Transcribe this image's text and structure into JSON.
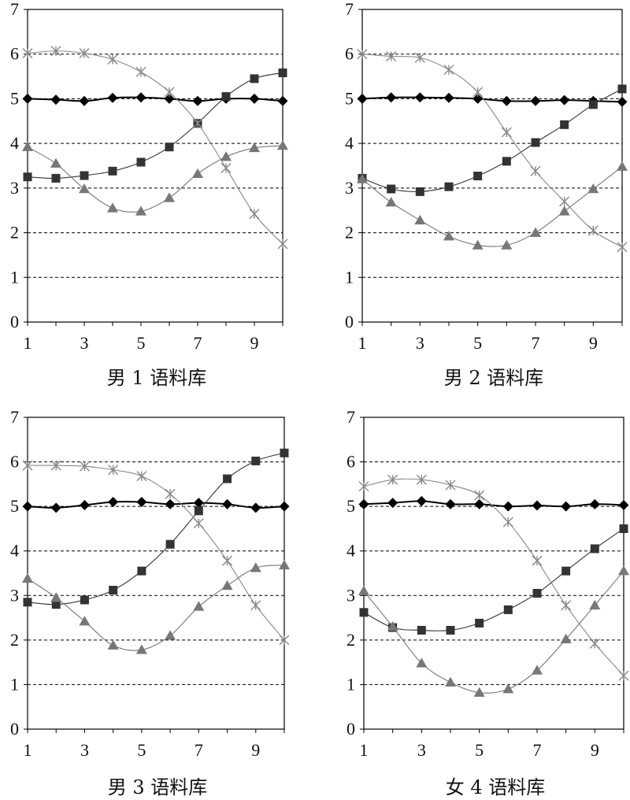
{
  "chart_data": [
    {
      "type": "line",
      "title": "男 1 语料库",
      "x": [
        1,
        2,
        3,
        4,
        5,
        6,
        7,
        8,
        9,
        10
      ],
      "x_tick_labels": [
        "1",
        "3",
        "5",
        "7",
        "9"
      ],
      "y_tick_labels": [
        "0",
        "1",
        "2",
        "3",
        "4",
        "5",
        "6",
        "7"
      ],
      "ylim": [
        0,
        7
      ],
      "xlim": [
        1,
        10
      ],
      "grid": "horizontal-dashed",
      "series": [
        {
          "marker": "diamond",
          "color": "#000000",
          "values": [
            5.0,
            4.98,
            4.95,
            5.02,
            5.03,
            5.0,
            4.95,
            5.0,
            5.0,
            4.95
          ]
        },
        {
          "marker": "square",
          "color": "#333333",
          "values": [
            3.25,
            3.22,
            3.28,
            3.38,
            3.58,
            3.92,
            4.45,
            5.05,
            5.45,
            5.58
          ]
        },
        {
          "marker": "triangle",
          "color": "#777777",
          "values": [
            3.92,
            3.55,
            2.98,
            2.55,
            2.48,
            2.78,
            3.32,
            3.7,
            3.9,
            3.95
          ]
        },
        {
          "marker": "star",
          "color": "#888888",
          "values": [
            6.02,
            6.07,
            6.02,
            5.88,
            5.6,
            5.15,
            4.45,
            3.45,
            2.42,
            1.75
          ]
        }
      ]
    },
    {
      "type": "line",
      "title": "男 2 语料库",
      "x": [
        1,
        2,
        3,
        4,
        5,
        6,
        7,
        8,
        9,
        10
      ],
      "x_tick_labels": [
        "1",
        "3",
        "5",
        "7",
        "9"
      ],
      "y_tick_labels": [
        "0",
        "1",
        "2",
        "3",
        "4",
        "5",
        "6",
        "7"
      ],
      "ylim": [
        0,
        7
      ],
      "xlim": [
        1,
        10
      ],
      "grid": "horizontal-dashed",
      "series": [
        {
          "marker": "diamond",
          "color": "#000000",
          "values": [
            5.0,
            5.03,
            5.03,
            5.02,
            5.0,
            4.95,
            4.95,
            4.97,
            4.95,
            4.93
          ]
        },
        {
          "marker": "square",
          "color": "#333333",
          "values": [
            3.22,
            2.98,
            2.92,
            3.03,
            3.27,
            3.6,
            4.02,
            4.42,
            4.87,
            5.22
          ]
        },
        {
          "marker": "triangle",
          "color": "#777777",
          "values": [
            3.2,
            2.68,
            2.28,
            1.92,
            1.72,
            1.72,
            2.0,
            2.48,
            2.98,
            3.48
          ]
        },
        {
          "marker": "star",
          "color": "#888888",
          "values": [
            6.0,
            5.95,
            5.92,
            5.65,
            5.15,
            4.25,
            3.38,
            2.7,
            2.05,
            1.68
          ]
        }
      ]
    },
    {
      "type": "line",
      "title": "男 3 语料库",
      "x": [
        1,
        2,
        3,
        4,
        5,
        6,
        7,
        8,
        9,
        10
      ],
      "x_tick_labels": [
        "1",
        "3",
        "5",
        "7",
        "9"
      ],
      "y_tick_labels": [
        "0",
        "1",
        "2",
        "3",
        "4",
        "5",
        "6",
        "7"
      ],
      "ylim": [
        0,
        7
      ],
      "xlim": [
        1,
        10
      ],
      "grid": "horizontal-dashed",
      "series": [
        {
          "marker": "diamond",
          "color": "#000000",
          "values": [
            5.0,
            4.97,
            5.03,
            5.1,
            5.1,
            5.05,
            5.08,
            5.05,
            4.97,
            5.0
          ]
        },
        {
          "marker": "square",
          "color": "#333333",
          "values": [
            2.85,
            2.8,
            2.9,
            3.12,
            3.55,
            4.15,
            4.9,
            5.62,
            6.02,
            6.2
          ]
        },
        {
          "marker": "triangle",
          "color": "#777777",
          "values": [
            3.38,
            2.95,
            2.42,
            1.88,
            1.78,
            2.1,
            2.75,
            3.22,
            3.62,
            3.68
          ]
        },
        {
          "marker": "star",
          "color": "#888888",
          "values": [
            5.92,
            5.92,
            5.9,
            5.82,
            5.68,
            5.28,
            4.62,
            3.78,
            2.78,
            2.0
          ]
        }
      ]
    },
    {
      "type": "line",
      "title": "女 4 语料库",
      "x": [
        1,
        2,
        3,
        4,
        5,
        6,
        7,
        8,
        9,
        10
      ],
      "x_tick_labels": [
        "1",
        "3",
        "5",
        "7",
        "9"
      ],
      "y_tick_labels": [
        "0",
        "1",
        "2",
        "3",
        "4",
        "5",
        "6",
        "7"
      ],
      "ylim": [
        0,
        7
      ],
      "xlim": [
        1,
        10
      ],
      "grid": "horizontal-dashed",
      "series": [
        {
          "marker": "diamond",
          "color": "#000000",
          "values": [
            5.05,
            5.08,
            5.12,
            5.05,
            5.05,
            5.0,
            5.02,
            5.0,
            5.05,
            5.03
          ]
        },
        {
          "marker": "square",
          "color": "#333333",
          "values": [
            2.62,
            2.28,
            2.22,
            2.22,
            2.38,
            2.68,
            3.05,
            3.55,
            4.05,
            4.5
          ]
        },
        {
          "marker": "triangle",
          "color": "#777777",
          "values": [
            3.1,
            2.3,
            1.48,
            1.05,
            0.82,
            0.9,
            1.32,
            2.02,
            2.78,
            3.55
          ]
        },
        {
          "marker": "star",
          "color": "#888888",
          "values": [
            5.45,
            5.6,
            5.6,
            5.48,
            5.25,
            4.65,
            3.78,
            2.78,
            1.92,
            1.2
          ]
        }
      ]
    }
  ]
}
